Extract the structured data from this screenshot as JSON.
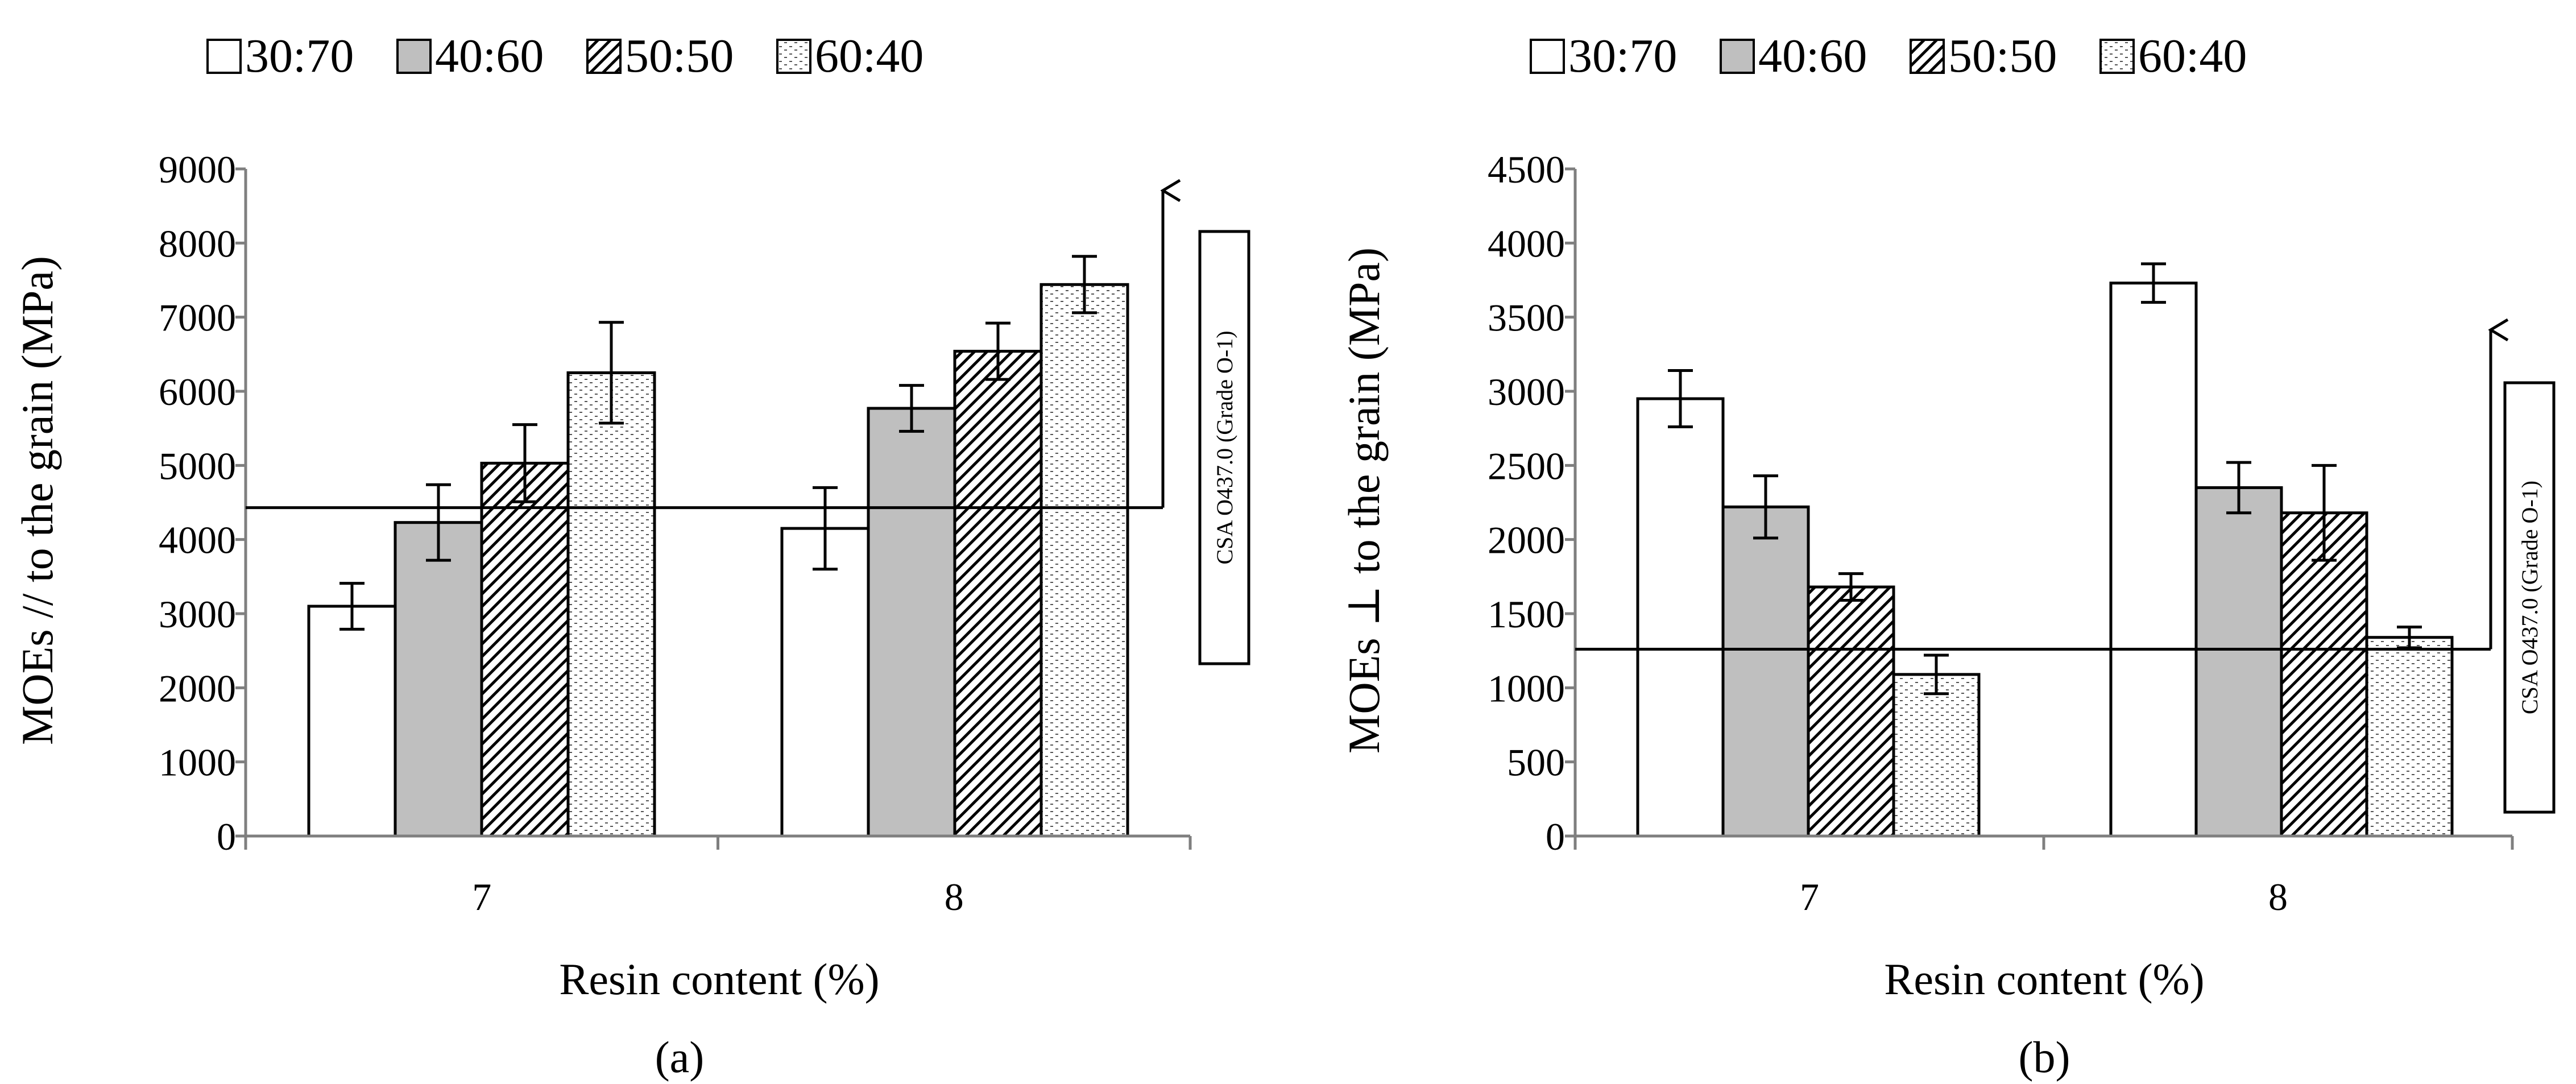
{
  "chart_data": [
    {
      "type": "bar",
      "panel_label": "(a)",
      "categories": [
        "7",
        "8"
      ],
      "series": [
        {
          "name": "30:70",
          "values": [
            3100,
            4150
          ],
          "errors": [
            310,
            550
          ],
          "pattern": "white"
        },
        {
          "name": "40:60",
          "values": [
            4230,
            5770
          ],
          "errors": [
            510,
            310
          ],
          "pattern": "gray"
        },
        {
          "name": "50:50",
          "values": [
            5030,
            6540
          ],
          "errors": [
            520,
            380
          ],
          "pattern": "hatch"
        },
        {
          "name": "60:40",
          "values": [
            6250,
            7440
          ],
          "errors": [
            680,
            380
          ],
          "pattern": "dots"
        }
      ],
      "xlabel": "Resin content (%)",
      "ylabel": "MOEs // to the grain (MPa)",
      "ylim": [
        0,
        9000
      ],
      "yticks": [
        0,
        1000,
        2000,
        3000,
        4000,
        5000,
        6000,
        7000,
        8000,
        9000
      ],
      "reference_line": {
        "value": 4430,
        "label": "CSA O437.0 (Grade O-1)"
      },
      "grid": false,
      "legend_position": "top"
    },
    {
      "type": "bar",
      "panel_label": "(b)",
      "categories": [
        "7",
        "8"
      ],
      "series": [
        {
          "name": "30:70",
          "values": [
            2950,
            3730
          ],
          "errors": [
            190,
            130
          ],
          "pattern": "white"
        },
        {
          "name": "40:60",
          "values": [
            2220,
            2350
          ],
          "errors": [
            210,
            170
          ],
          "pattern": "gray"
        },
        {
          "name": "50:50",
          "values": [
            1680,
            2180
          ],
          "errors": [
            90,
            320
          ],
          "pattern": "hatch"
        },
        {
          "name": "60:40",
          "values": [
            1090,
            1340
          ],
          "errors": [
            130,
            70
          ],
          "pattern": "dots"
        }
      ],
      "xlabel": "Resin content (%)",
      "ylabel": "MOEs ⊥ to the grain (MPa)",
      "ylim": [
        0,
        4500
      ],
      "yticks": [
        0,
        500,
        1000,
        1500,
        2000,
        2500,
        3000,
        3500,
        4000,
        4500
      ],
      "reference_line": {
        "value": 1260,
        "label": "CSA O437.0 (Grade O-1)"
      },
      "grid": false,
      "legend_position": "top"
    }
  ]
}
